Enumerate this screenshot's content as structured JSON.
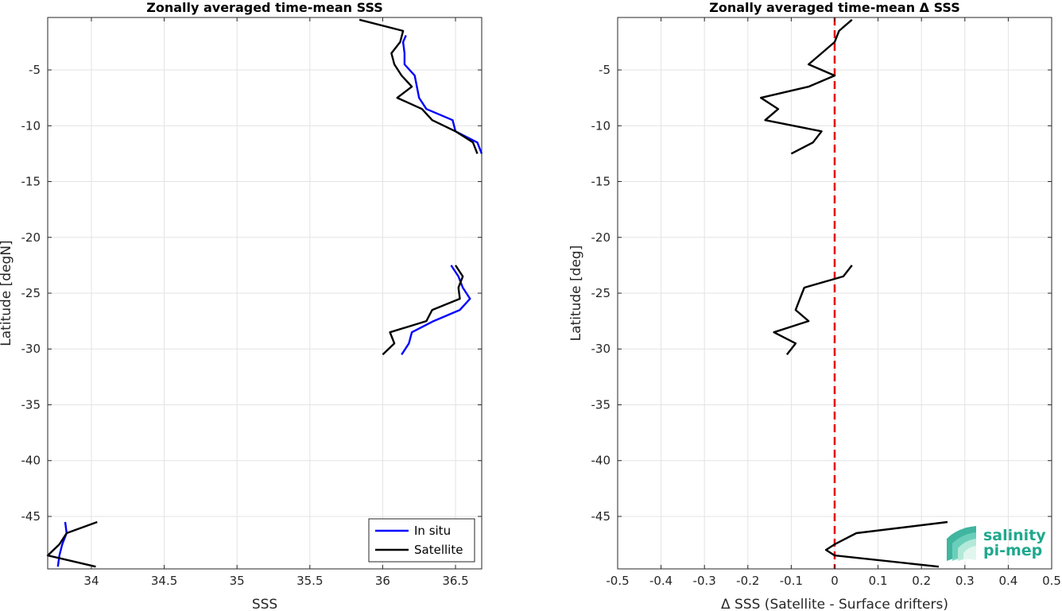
{
  "chart_data": [
    {
      "type": "line",
      "title": "Zonally averaged time-mean SSS",
      "xlabel": "SSS",
      "ylabel": "Latitude [degN]",
      "xlim": [
        33.7,
        36.68
      ],
      "ylim": [
        -49.7,
        -0.3
      ],
      "xticks": [
        34,
        34.5,
        35,
        35.5,
        36,
        36.5
      ],
      "yticks": [
        -5,
        -10,
        -15,
        -20,
        -25,
        -30,
        -35,
        -40,
        -45
      ],
      "grid": true,
      "legend": {
        "location": "bottom-right",
        "entries": [
          "In situ",
          "Satellite"
        ]
      },
      "series": [
        {
          "name": "In situ",
          "color": "#0000ff",
          "segments": [
            [
              [
                36.16,
                -1.9
              ],
              [
                36.14,
                -2.5
              ],
              [
                36.15,
                -3.5
              ],
              [
                36.15,
                -4.5
              ],
              [
                36.22,
                -5.5
              ],
              [
                36.25,
                -7.5
              ],
              [
                36.3,
                -8.5
              ],
              [
                36.48,
                -9.5
              ],
              [
                36.5,
                -10.5
              ],
              [
                36.65,
                -11.5
              ],
              [
                36.68,
                -12.5
              ]
            ],
            [
              [
                36.47,
                -22.5
              ],
              [
                36.52,
                -23.5
              ],
              [
                36.55,
                -24.5
              ],
              [
                36.6,
                -25.5
              ],
              [
                36.53,
                -26.5
              ],
              [
                36.35,
                -27.5
              ],
              [
                36.2,
                -28.5
              ],
              [
                36.18,
                -29.5
              ],
              [
                36.13,
                -30.5
              ]
            ],
            [
              [
                33.82,
                -45.5
              ],
              [
                33.83,
                -46.5
              ],
              [
                33.8,
                -47.5
              ],
              [
                33.78,
                -48.5
              ],
              [
                33.77,
                -49.5
              ]
            ]
          ]
        },
        {
          "name": "Satellite",
          "color": "#000000",
          "segments": [
            [
              [
                35.84,
                -0.5
              ],
              [
                36.14,
                -1.5
              ],
              [
                36.12,
                -2.5
              ],
              [
                36.06,
                -3.5
              ],
              [
                36.08,
                -4.5
              ],
              [
                36.13,
                -5.5
              ],
              [
                36.2,
                -6.5
              ],
              [
                36.1,
                -7.5
              ],
              [
                36.27,
                -8.5
              ],
              [
                36.34,
                -9.5
              ],
              [
                36.5,
                -10.5
              ],
              [
                36.62,
                -11.5
              ],
              [
                36.65,
                -12.5
              ]
            ],
            [
              [
                36.5,
                -22.5
              ],
              [
                36.55,
                -23.5
              ],
              [
                36.52,
                -24.5
              ],
              [
                36.53,
                -25.5
              ],
              [
                36.34,
                -26.5
              ],
              [
                36.3,
                -27.5
              ],
              [
                36.05,
                -28.5
              ],
              [
                36.08,
                -29.5
              ],
              [
                36.0,
                -30.5
              ]
            ],
            [
              [
                34.04,
                -45.5
              ],
              [
                33.83,
                -46.5
              ],
              [
                33.78,
                -47.5
              ],
              [
                33.7,
                -48.5
              ],
              [
                34.03,
                -49.5
              ]
            ]
          ]
        }
      ]
    },
    {
      "type": "line",
      "title": "Zonally averaged time-mean Δ SSS",
      "xlabel": "Δ SSS (Satellite - Surface drifters)",
      "ylabel": "Latitude [deg]",
      "xlim": [
        -0.5,
        0.5
      ],
      "ylim": [
        -49.7,
        -0.3
      ],
      "xticks": [
        -0.5,
        -0.4,
        -0.3,
        -0.2,
        -0.1,
        0,
        0.1,
        0.2,
        0.3,
        0.4,
        0.5
      ],
      "yticks": [
        -5,
        -10,
        -15,
        -20,
        -25,
        -30,
        -35,
        -40,
        -45
      ],
      "grid": true,
      "reference_line": {
        "x": 0,
        "color": "#e60000",
        "style": "dashed"
      },
      "series": [
        {
          "color": "#000000",
          "segments": [
            [
              [
                0.04,
                -0.5
              ],
              [
                0.01,
                -1.5
              ],
              [
                0.0,
                -2.5
              ],
              [
                -0.03,
                -3.5
              ],
              [
                -0.06,
                -4.5
              ],
              [
                0.0,
                -5.5
              ],
              [
                -0.06,
                -6.5
              ],
              [
                -0.17,
                -7.5
              ],
              [
                -0.13,
                -8.5
              ],
              [
                -0.16,
                -9.5
              ],
              [
                -0.03,
                -10.5
              ],
              [
                -0.05,
                -11.5
              ],
              [
                -0.1,
                -12.5
              ]
            ],
            [
              [
                0.04,
                -22.5
              ],
              [
                0.02,
                -23.5
              ],
              [
                -0.07,
                -24.5
              ],
              [
                -0.08,
                -25.5
              ],
              [
                -0.09,
                -26.5
              ],
              [
                -0.06,
                -27.5
              ],
              [
                -0.14,
                -28.5
              ],
              [
                -0.09,
                -29.5
              ],
              [
                -0.11,
                -30.5
              ]
            ],
            [
              [
                0.26,
                -45.5
              ],
              [
                0.05,
                -46.5
              ],
              [
                0.0,
                -47.5
              ],
              [
                -0.02,
                -48.0
              ],
              [
                0.0,
                -48.5
              ],
              [
                0.24,
                -49.5
              ]
            ]
          ]
        }
      ]
    }
  ],
  "logo": {
    "line1": "salinity",
    "line2": "pi-mep",
    "color": "#1fa88e"
  }
}
